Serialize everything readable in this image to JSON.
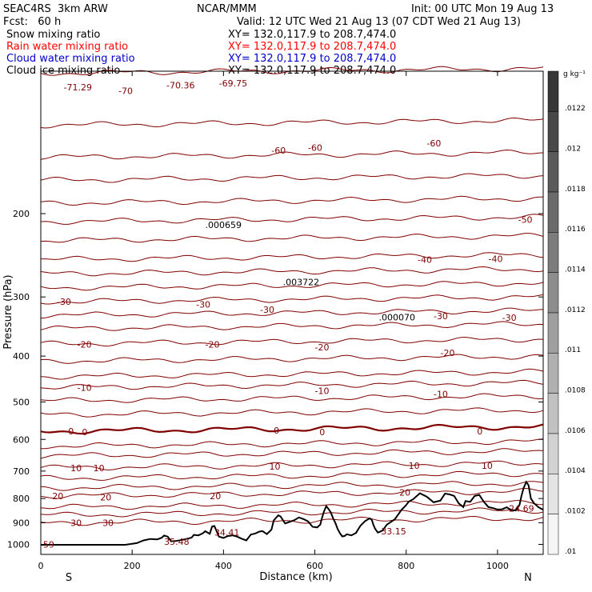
{
  "header": {
    "model": "SEAC4RS  3km ARW",
    "center": "NCAR/MMM",
    "init": "Init: 00 UTC Mon 19 Aug 13",
    "fcst": "Fcst:   60 h",
    "valid": "Valid: 12 UTC Wed 21 Aug 13 (07 CDT Wed 21 Aug 13)",
    "fields": [
      {
        "name": "Snow mixing ratio",
        "color": "#000000",
        "xy": "XY= 132.0,117.9 to 208.7,474.0"
      },
      {
        "name": "Rain water mixing ratio",
        "color": "#ff0000",
        "xy": "XY= 132.0,117.9 to 208.7,474.0"
      },
      {
        "name": "Cloud water mixing ratio",
        "color": "#0000cc",
        "xy": "XY= 132.0,117.9 to 208.7,474.0"
      },
      {
        "name": "Cloud ice mixing ratio",
        "color": "#000000",
        "xy": "XY= 132.0,117.9 to 208.7,474.0"
      }
    ]
  },
  "chart_data": {
    "type": "line",
    "title": "",
    "xlabel": "Distance (km)",
    "ylabel": "Pressure (hPa)",
    "xlim": [
      0,
      1100
    ],
    "ylim": [
      1050,
      100
    ],
    "yscale": "log",
    "x_ticks": [
      0,
      200,
      400,
      600,
      800,
      1000
    ],
    "y_ticks": [
      200,
      300,
      400,
      500,
      600,
      700,
      800,
      900,
      1000
    ],
    "axis_end_labels": {
      "left": "S",
      "right": "N"
    },
    "colorbar": {
      "unit": "g kg⁻¹",
      "labels": [
        ".0122",
        ".012",
        ".0118",
        ".0116",
        ".0114",
        ".0112",
        ".011",
        ".0108",
        ".0106",
        ".0104",
        ".0102",
        ".01"
      ]
    },
    "temperature_label_color": "#800000",
    "temperature_labels": [
      {
        "text": "-71.29",
        "x": 50,
        "p": 108
      },
      {
        "text": "-70",
        "x": 170,
        "p": 110
      },
      {
        "text": "-70.36",
        "x": 275,
        "p": 107
      },
      {
        "text": "-69.75",
        "x": 390,
        "p": 106
      },
      {
        "text": "-60",
        "x": 505,
        "p": 147
      },
      {
        "text": "-60",
        "x": 585,
        "p": 145
      },
      {
        "text": "-60",
        "x": 845,
        "p": 142
      },
      {
        "text": "-50",
        "x": 1045,
        "p": 206
      },
      {
        "text": "-40",
        "x": 825,
        "p": 250
      },
      {
        "text": "-40",
        "x": 980,
        "p": 249
      },
      {
        "text": "-30",
        "x": 35,
        "p": 307
      },
      {
        "text": "-30",
        "x": 340,
        "p": 311
      },
      {
        "text": "-30",
        "x": 480,
        "p": 319
      },
      {
        "text": "-30",
        "x": 860,
        "p": 329
      },
      {
        "text": "-30",
        "x": 1010,
        "p": 332
      },
      {
        "text": "-20",
        "x": 80,
        "p": 378
      },
      {
        "text": "-20",
        "x": 360,
        "p": 378
      },
      {
        "text": "-20",
        "x": 600,
        "p": 383
      },
      {
        "text": "-20",
        "x": 875,
        "p": 394
      },
      {
        "text": "-10",
        "x": 80,
        "p": 466
      },
      {
        "text": "-10",
        "x": 600,
        "p": 474
      },
      {
        "text": "-10",
        "x": 860,
        "p": 481
      },
      {
        "text": "0",
        "x": 60,
        "p": 577
      },
      {
        "text": "0",
        "x": 90,
        "p": 579
      },
      {
        "text": "0",
        "x": 510,
        "p": 574
      },
      {
        "text": "0",
        "x": 610,
        "p": 579
      },
      {
        "text": "0",
        "x": 955,
        "p": 576
      },
      {
        "text": "10",
        "x": 65,
        "p": 689
      },
      {
        "text": "10",
        "x": 115,
        "p": 689
      },
      {
        "text": "10",
        "x": 500,
        "p": 684
      },
      {
        "text": "10",
        "x": 805,
        "p": 681
      },
      {
        "text": "10",
        "x": 965,
        "p": 681
      },
      {
        "text": "20",
        "x": 25,
        "p": 790
      },
      {
        "text": "20",
        "x": 130,
        "p": 795
      },
      {
        "text": "20",
        "x": 370,
        "p": 790
      },
      {
        "text": "20",
        "x": 785,
        "p": 776
      },
      {
        "text": "30",
        "x": 65,
        "p": 901
      },
      {
        "text": "30",
        "x": 135,
        "p": 901
      }
    ],
    "extrema": [
      {
        "text": ".000659",
        "x": 360,
        "p": 211
      },
      {
        "text": ".003722",
        "x": 530,
        "p": 279
      },
      {
        "text": ".000070",
        "x": 740,
        "p": 331
      },
      {
        "text": "35.48",
        "x": 270,
        "p": 987
      },
      {
        "text": "34.41",
        "x": 380,
        "p": 944
      },
      {
        "text": "33.15",
        "x": 745,
        "p": 937
      },
      {
        "text": "24.69",
        "x": 1025,
        "p": 839
      },
      {
        "text": "59",
        "x": 5,
        "p": 1000
      }
    ],
    "isotherms_p_at_left": [
      101,
      130,
      152,
      170,
      190,
      208,
      228,
      250,
      268,
      287,
      307,
      328,
      350,
      377,
      410,
      442,
      466,
      497,
      532,
      577,
      620,
      650,
      689,
      725,
      760,
      790,
      835,
      867,
      901
    ],
    "terrain": {
      "x": [
        0,
        185,
        210,
        225,
        240,
        255,
        265,
        270,
        278,
        285,
        295,
        310,
        330,
        335,
        345,
        355,
        360,
        370,
        375,
        380,
        390,
        400,
        410,
        420,
        430,
        440,
        450,
        460,
        470,
        478,
        485,
        495,
        505,
        510,
        520,
        525,
        535,
        545,
        555,
        565,
        575,
        585,
        595,
        605,
        612,
        615,
        620,
        625,
        630,
        635,
        640,
        645,
        650,
        655,
        660,
        665,
        670,
        680,
        690,
        700,
        710,
        720,
        725,
        728,
        732,
        738,
        742,
        748,
        758,
        765,
        775,
        790,
        800,
        805,
        815,
        830,
        845,
        860,
        875,
        885,
        895,
        905,
        915,
        925,
        930,
        940,
        950,
        960,
        970,
        980,
        990,
        1000,
        1010,
        1020,
        1030,
        1040,
        1048,
        1052,
        1057,
        1063,
        1068,
        1073,
        1080,
        1090,
        1100
      ],
      "p": [
        1002,
        1002,
        994,
        981,
        974,
        976,
        968,
        958,
        963,
        985,
        984,
        978,
        968,
        955,
        957,
        947,
        938,
        950,
        917,
        914,
        963,
        969,
        960,
        957,
        963,
        973,
        981,
        953,
        948,
        940,
        937,
        951,
        931,
        890,
        868,
        873,
        903,
        896,
        889,
        877,
        884,
        894,
        918,
        921,
        908,
        884,
        852,
        830,
        842,
        856,
        881,
        901,
        928,
        947,
        962,
        960,
        952,
        957,
        946,
        913,
        893,
        881,
        888,
        908,
        927,
        944,
        941,
        935,
        908,
        899,
        885,
        845,
        826,
        813,
        803,
        780,
        793,
        815,
        808,
        781,
        784,
        790,
        819,
        834,
        810,
        813,
        790,
        786,
        813,
        834,
        838,
        844,
        843,
        835,
        846,
        848,
        826,
        793,
        760,
        738,
        750,
        800,
        819,
        835,
        845
      ]
    }
  }
}
